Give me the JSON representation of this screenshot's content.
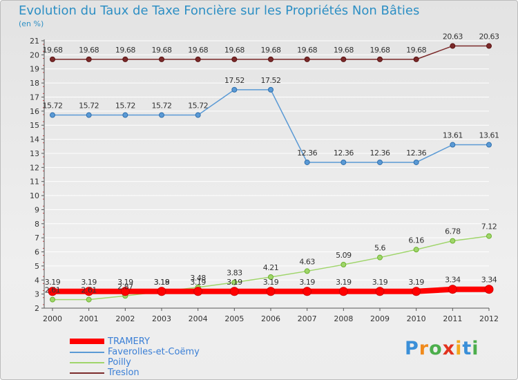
{
  "title": "Evolution du Taux de Taxe Foncière sur les Propriétés Non Bâties",
  "unit_label": "(en %)",
  "chart_data": {
    "type": "line",
    "title": "Evolution du Taux de Taxe Foncière sur les Propriétés Non Bâties",
    "ylabel": "(en %)",
    "xlabel": "",
    "ylim": [
      2,
      21
    ],
    "yticks": [
      2,
      3,
      4,
      5,
      6,
      7,
      8,
      9,
      10,
      11,
      12,
      13,
      14,
      15,
      16,
      17,
      18,
      19,
      20,
      21
    ],
    "categories": [
      "2000",
      "2001",
      "2002",
      "2003",
      "2004",
      "2005",
      "2006",
      "2007",
      "2008",
      "2009",
      "2010",
      "2011",
      "2012"
    ],
    "series": [
      {
        "name": "Treslon",
        "color": "#7b2a2a",
        "values": [
          19.68,
          19.68,
          19.68,
          19.68,
          19.68,
          19.68,
          19.68,
          19.68,
          19.68,
          19.68,
          19.68,
          20.63,
          20.63
        ],
        "labels": [
          "19.68",
          "19.68",
          "19.68",
          "19.68",
          "19.68",
          "19.68",
          "19.68",
          "19.68",
          "19.68",
          "19.68",
          "19.68",
          "20.63",
          "20.63"
        ]
      },
      {
        "name": "Faverolles-et-Coëmy",
        "color": "#5b9ad5",
        "values": [
          15.72,
          15.72,
          15.72,
          15.72,
          15.72,
          17.52,
          17.52,
          12.36,
          12.36,
          12.36,
          12.36,
          13.61,
          13.61
        ],
        "labels": [
          "15.72",
          "15.72",
          "15.72",
          "15.72",
          "15.72",
          "17.52",
          "17.52",
          "12.36",
          "12.36",
          "12.36",
          "12.36",
          "13.61",
          "13.61"
        ]
      },
      {
        "name": "Poilly",
        "color": "#9fd56a",
        "values": [
          2.61,
          2.61,
          2.87,
          3.18,
          3.48,
          3.83,
          4.21,
          4.63,
          5.09,
          5.6,
          6.16,
          6.78,
          7.12
        ],
        "labels": [
          "2.61",
          "2.61",
          "2.87",
          "3.18",
          "3.48",
          "3.83",
          "4.21",
          "4.63",
          "5.09",
          "5.6",
          "6.16",
          "6.78",
          "7.12"
        ]
      },
      {
        "name": "TRAMERY",
        "color": "#ff0000",
        "values": [
          3.19,
          3.19,
          3.19,
          3.19,
          3.19,
          3.19,
          3.19,
          3.19,
          3.19,
          3.19,
          3.19,
          3.34,
          3.34
        ],
        "labels": [
          "3.19",
          "3.19",
          "3.19",
          "3.19",
          "3.19",
          "3.19",
          "3.19",
          "3.19",
          "3.19",
          "3.19",
          "3.19",
          "3.34",
          "3.34"
        ]
      }
    ]
  },
  "legend": [
    {
      "name": "TRAMERY",
      "color": "#ff0000"
    },
    {
      "name": "Faverolles-et-Coëmy",
      "color": "#5b9ad5"
    },
    {
      "name": "Poilly",
      "color": "#9fd56a"
    },
    {
      "name": "Treslon",
      "color": "#7b2a2a"
    }
  ],
  "logo": {
    "text": "Proxiti",
    "letters": [
      "P",
      "r",
      "o",
      "x",
      "i",
      "t",
      "i"
    ],
    "colors": [
      "#3a8fd8",
      "#f08a1c",
      "#4cae4c",
      "#e2321e",
      "#f2a81d",
      "#3a8fd8",
      "#4cae4c"
    ]
  }
}
